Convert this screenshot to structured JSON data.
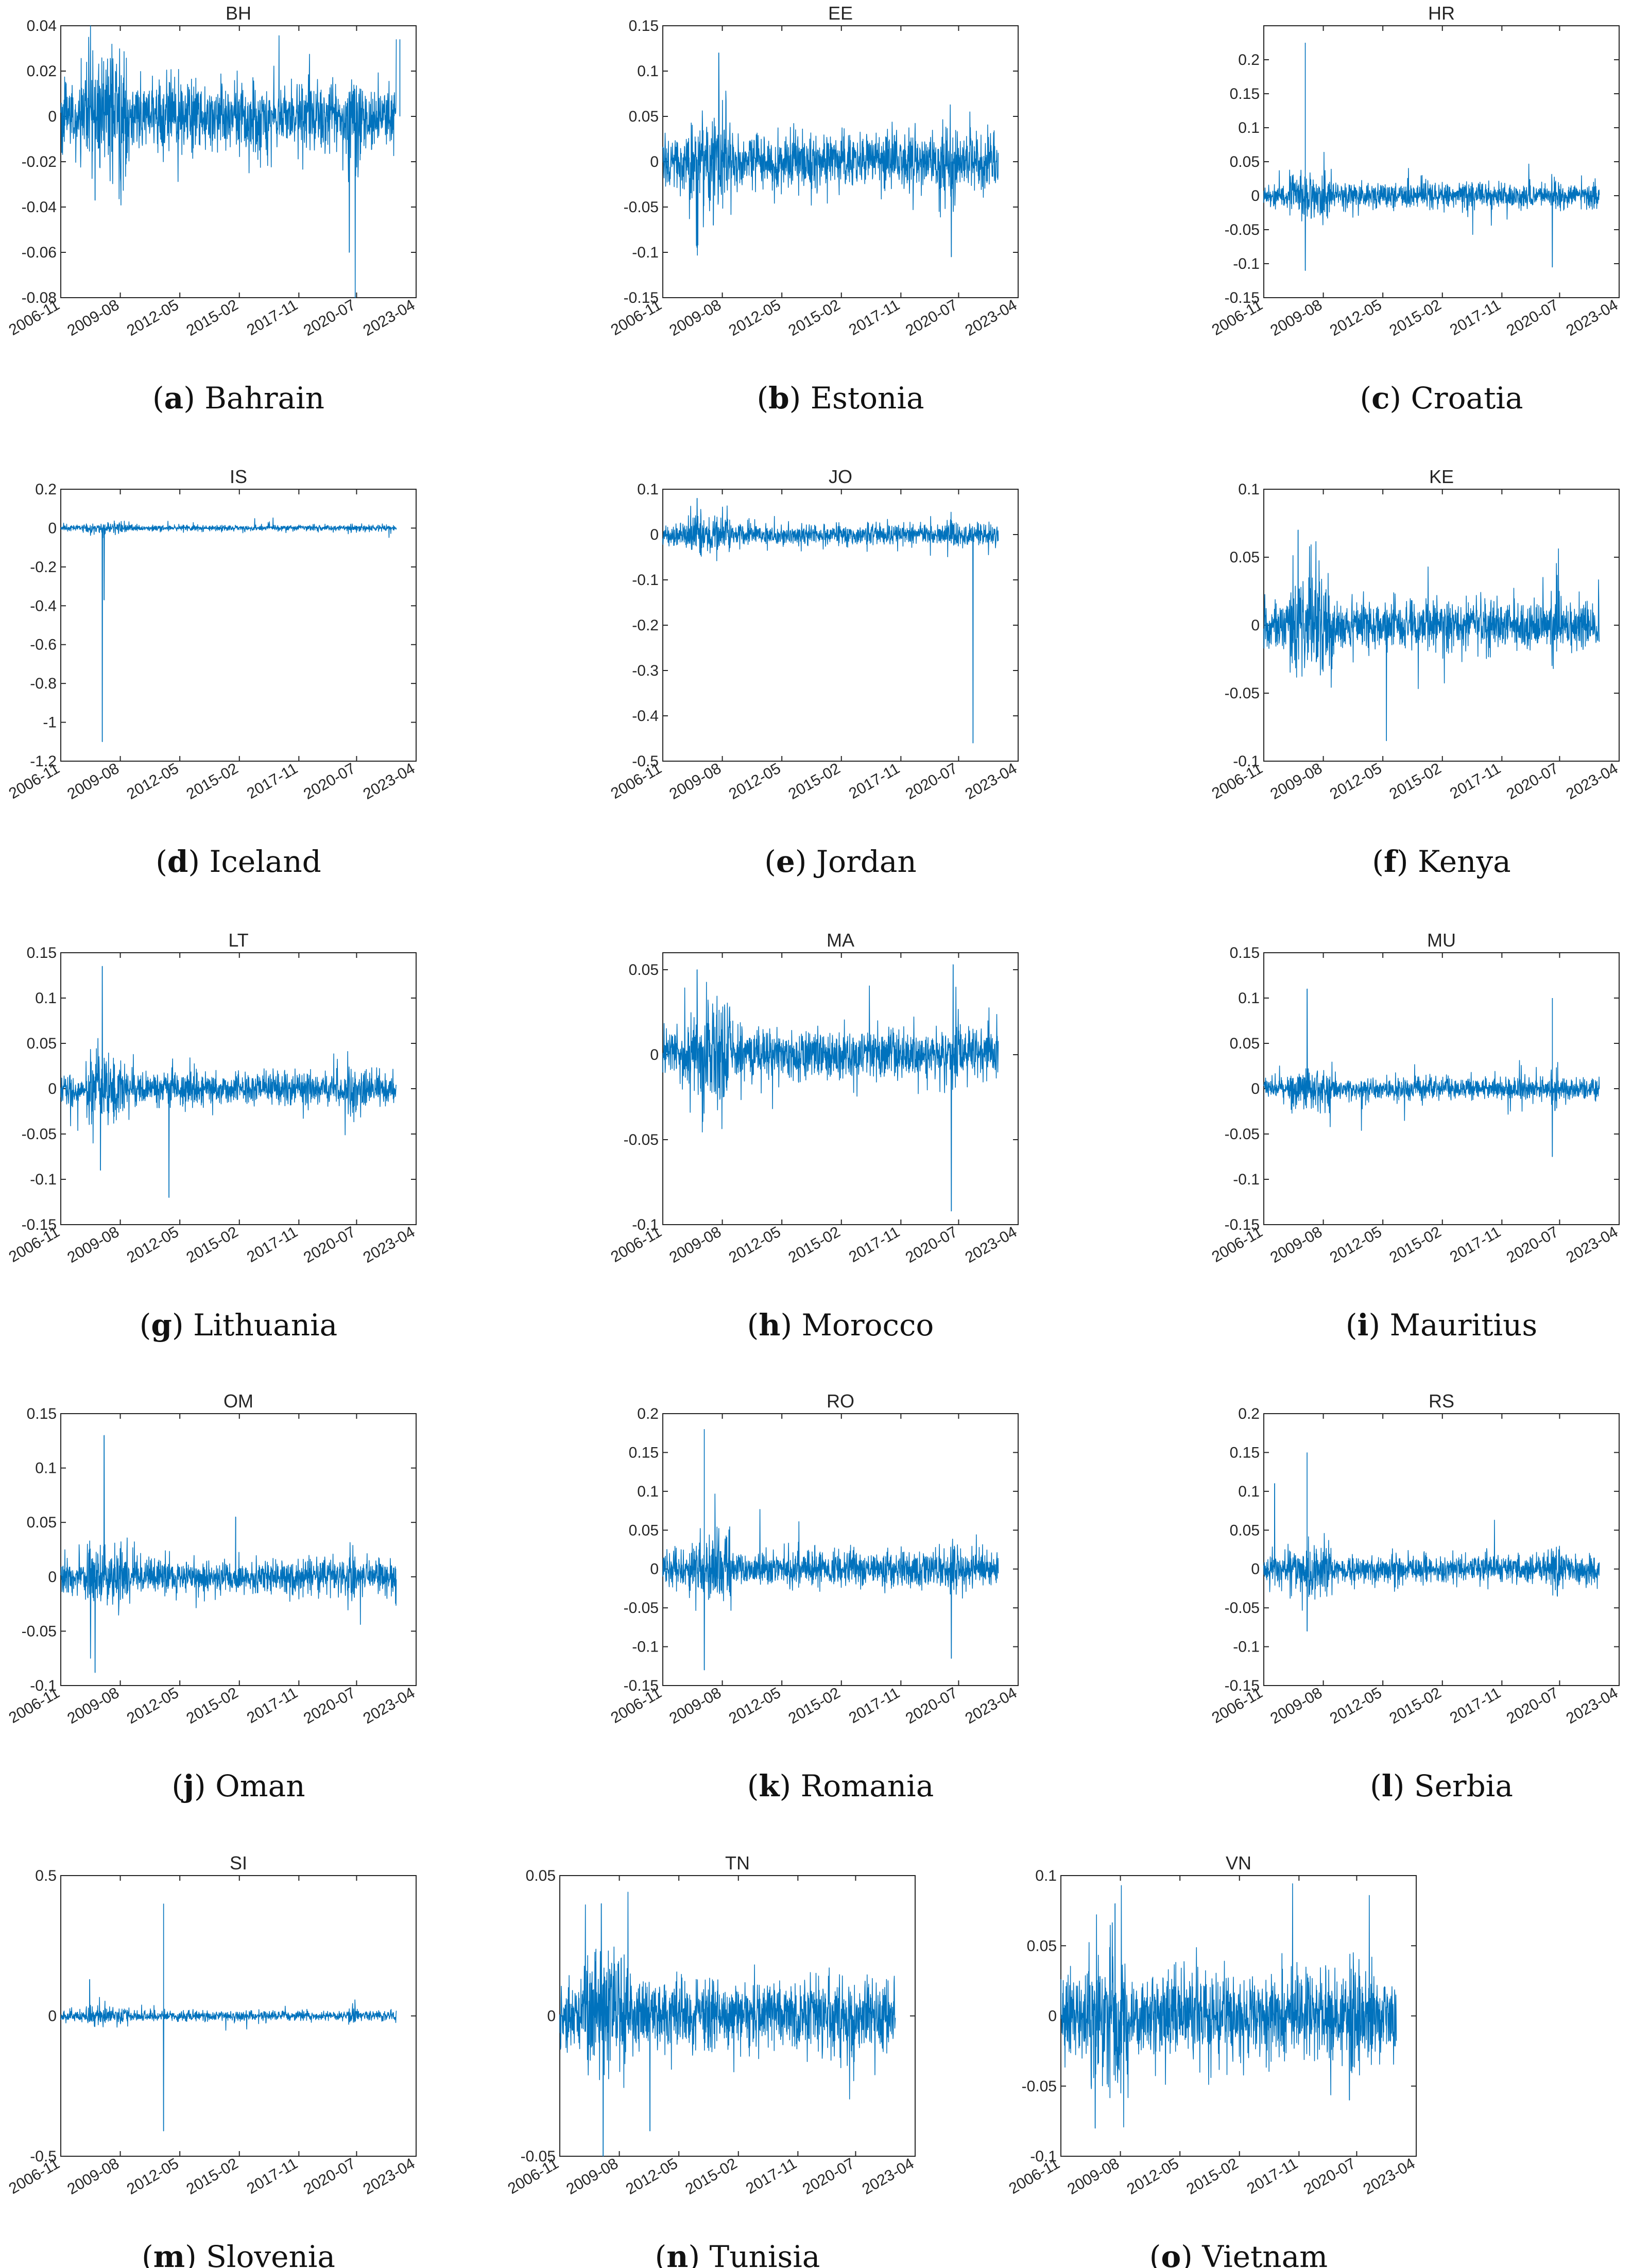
{
  "figure": {
    "series_color": "#0072BD",
    "time_ticks": [
      "2006-11",
      "2009-08",
      "2012-05",
      "2015-02",
      "2017-11",
      "2020-07",
      "2023-04"
    ]
  },
  "chart_data": [
    {
      "type": "line",
      "title": "BH",
      "caption_letter": "a",
      "caption_country": "Bahrain",
      "ylim": [
        -0.08,
        0.04
      ],
      "yticks": [
        -0.08,
        -0.06,
        -0.04,
        -0.02,
        0,
        0.02,
        0.04
      ],
      "ytick_labels": [
        "-0.08",
        "-0.06",
        "-0.04",
        "-0.02",
        "0",
        "0.02",
        "0.04"
      ],
      "xlabel": "",
      "ylabel": "",
      "grid": false,
      "legend": "none",
      "typical_amplitude": 0.01,
      "annotated_extremes": [
        {
          "date": "2008-06",
          "value": -0.037
        },
        {
          "date": "2020-03",
          "value": -0.06
        },
        {
          "date": "2022-07",
          "value": 0.034
        }
      ]
    },
    {
      "type": "line",
      "title": "EE",
      "caption_letter": "b",
      "caption_country": "Estonia",
      "ylim": [
        -0.15,
        0.15
      ],
      "yticks": [
        -0.15,
        -0.1,
        -0.05,
        0,
        0.05,
        0.1,
        0.15
      ],
      "ytick_labels": [
        "-0.15",
        "-0.1",
        "-0.05",
        "0",
        "0.05",
        "0.1",
        "0.15"
      ],
      "xlabel": "",
      "ylabel": "",
      "grid": false,
      "legend": "none",
      "typical_amplitude": 0.02,
      "annotated_extremes": [
        {
          "date": "2009-06",
          "value": 0.12
        },
        {
          "date": "2009-03",
          "value": -0.07
        },
        {
          "date": "2020-03",
          "value": -0.105
        }
      ]
    },
    {
      "type": "line",
      "title": "HR",
      "caption_letter": "c",
      "caption_country": "Croatia",
      "ylim": [
        -0.15,
        0.25
      ],
      "yticks": [
        -0.15,
        -0.1,
        -0.05,
        0,
        0.05,
        0.1,
        0.15,
        0.2
      ],
      "ytick_labels": [
        "-0.15",
        "-0.1",
        "-0.05",
        "0",
        "0.05",
        "0.1",
        "0.15",
        "0.2"
      ],
      "xlabel": "",
      "ylabel": "",
      "grid": false,
      "legend": "none",
      "typical_amplitude": 0.012,
      "annotated_extremes": [
        {
          "date": "2008-10",
          "value": 0.225
        },
        {
          "date": "2008-10",
          "value": -0.11
        },
        {
          "date": "2020-03",
          "value": -0.105
        }
      ]
    },
    {
      "type": "line",
      "title": "IS",
      "caption_letter": "d",
      "caption_country": "Iceland",
      "ylim": [
        -1.2,
        0.2
      ],
      "yticks": [
        -1.2,
        -1,
        -0.8,
        -0.6,
        -0.4,
        -0.2,
        0,
        0.2
      ],
      "ytick_labels": [
        "-1.2",
        "-1",
        "-0.8",
        "-0.6",
        "-0.4",
        "-0.2",
        "0",
        "0.2"
      ],
      "xlabel": "",
      "ylabel": "",
      "grid": false,
      "legend": "none",
      "typical_amplitude": 0.01,
      "annotated_extremes": [
        {
          "date": "2008-10",
          "value": -1.1
        },
        {
          "date": "2008-11",
          "value": -0.37
        }
      ]
    },
    {
      "type": "line",
      "title": "JO",
      "caption_letter": "e",
      "caption_country": "Jordan",
      "ylim": [
        -0.5,
        0.1
      ],
      "yticks": [
        -0.5,
        -0.4,
        -0.3,
        -0.2,
        -0.1,
        0,
        0.1
      ],
      "ytick_labels": [
        "-0.5",
        "-0.4",
        "-0.3",
        "-0.2",
        "-0.1",
        "0",
        "0.1"
      ],
      "xlabel": "",
      "ylabel": "",
      "grid": false,
      "legend": "none",
      "typical_amplitude": 0.015,
      "annotated_extremes": [
        {
          "date": "2021-03",
          "value": -0.46
        },
        {
          "date": "2008-06",
          "value": 0.08
        }
      ]
    },
    {
      "type": "line",
      "title": "KE",
      "caption_letter": "f",
      "caption_country": "Kenya",
      "ylim": [
        -0.1,
        0.1
      ],
      "yticks": [
        -0.1,
        -0.05,
        0,
        0.05,
        0.1
      ],
      "ytick_labels": [
        "-0.1",
        "-0.05",
        "0",
        "0.05",
        "0.1"
      ],
      "xlabel": "",
      "ylabel": "",
      "grid": false,
      "legend": "none",
      "typical_amplitude": 0.012,
      "annotated_extremes": [
        {
          "date": "2008-06",
          "value": 0.07
        },
        {
          "date": "2012-07",
          "value": -0.085
        }
      ]
    },
    {
      "type": "line",
      "title": "LT",
      "caption_letter": "g",
      "caption_country": "Lithuania",
      "ylim": [
        -0.15,
        0.15
      ],
      "yticks": [
        -0.15,
        -0.1,
        -0.05,
        0,
        0.05,
        0.1,
        0.15
      ],
      "ytick_labels": [
        "-0.15",
        "-0.1",
        "-0.05",
        "0",
        "0.05",
        "0.1",
        "0.15"
      ],
      "xlabel": "",
      "ylabel": "",
      "grid": false,
      "legend": "none",
      "typical_amplitude": 0.012,
      "annotated_extremes": [
        {
          "date": "2008-10",
          "value": 0.135
        },
        {
          "date": "2008-09",
          "value": -0.09
        },
        {
          "date": "2011-11",
          "value": -0.12
        }
      ]
    },
    {
      "type": "line",
      "title": "MA",
      "caption_letter": "h",
      "caption_country": "Morocco",
      "ylim": [
        -0.1,
        0.06
      ],
      "yticks": [
        -0.1,
        -0.05,
        0,
        0.05
      ],
      "ytick_labels": [
        "-0.1",
        "-0.05",
        "0",
        "0.05"
      ],
      "xlabel": "",
      "ylabel": "",
      "grid": false,
      "legend": "none",
      "typical_amplitude": 0.01,
      "annotated_extremes": [
        {
          "date": "2008-06",
          "value": 0.05
        },
        {
          "date": "2020-03",
          "value": -0.092
        },
        {
          "date": "2020-04",
          "value": 0.053
        }
      ]
    },
    {
      "type": "line",
      "title": "MU",
      "caption_letter": "i",
      "caption_country": "Mauritius",
      "ylim": [
        -0.15,
        0.15
      ],
      "yticks": [
        -0.15,
        -0.1,
        -0.05,
        0,
        0.05,
        0.1,
        0.15
      ],
      "ytick_labels": [
        "-0.15",
        "-0.1",
        "-0.05",
        "0",
        "0.05",
        "0.1",
        "0.15"
      ],
      "xlabel": "",
      "ylabel": "",
      "grid": false,
      "legend": "none",
      "typical_amplitude": 0.008,
      "annotated_extremes": [
        {
          "date": "2008-11",
          "value": 0.11
        },
        {
          "date": "2020-03",
          "value": 0.1
        },
        {
          "date": "2020-03",
          "value": -0.075
        }
      ]
    },
    {
      "type": "line",
      "title": "OM",
      "caption_letter": "j",
      "caption_country": "Oman",
      "ylim": [
        -0.1,
        0.15
      ],
      "yticks": [
        -0.1,
        -0.05,
        0,
        0.05,
        0.1,
        0.15
      ],
      "ytick_labels": [
        "-0.1",
        "-0.05",
        "0",
        "0.05",
        "0.1",
        "0.15"
      ],
      "xlabel": "",
      "ylabel": "",
      "grid": false,
      "legend": "none",
      "typical_amplitude": 0.01,
      "annotated_extremes": [
        {
          "date": "2008-11",
          "value": 0.13
        },
        {
          "date": "2008-06",
          "value": -0.088
        },
        {
          "date": "2014-12",
          "value": 0.055
        }
      ]
    },
    {
      "type": "line",
      "title": "RO",
      "caption_letter": "k",
      "caption_country": "Romania",
      "ylim": [
        -0.15,
        0.2
      ],
      "yticks": [
        -0.15,
        -0.1,
        -0.05,
        0,
        0.05,
        0.1,
        0.15,
        0.2
      ],
      "ytick_labels": [
        "-0.15",
        "-0.1",
        "-0.05",
        "0",
        "0.05",
        "0.1",
        "0.15",
        "0.2"
      ],
      "xlabel": "",
      "ylabel": "",
      "grid": false,
      "legend": "none",
      "typical_amplitude": 0.015,
      "annotated_extremes": [
        {
          "date": "2008-10",
          "value": 0.18
        },
        {
          "date": "2008-10",
          "value": -0.13
        },
        {
          "date": "2020-03",
          "value": -0.115
        }
      ]
    },
    {
      "type": "line",
      "title": "RS",
      "caption_letter": "l",
      "caption_country": "Serbia",
      "ylim": [
        -0.15,
        0.2
      ],
      "yticks": [
        -0.15,
        -0.1,
        -0.05,
        0,
        0.05,
        0.1,
        0.15,
        0.2
      ],
      "ytick_labels": [
        "-0.15",
        "-0.1",
        "-0.05",
        "0",
        "0.05",
        "0.1",
        "0.15",
        "0.2"
      ],
      "xlabel": "",
      "ylabel": "",
      "grid": false,
      "legend": "none",
      "typical_amplitude": 0.012,
      "annotated_extremes": [
        {
          "date": "2008-11",
          "value": 0.15
        },
        {
          "date": "2007-05",
          "value": 0.11
        },
        {
          "date": "2008-11",
          "value": -0.08
        }
      ]
    },
    {
      "type": "line",
      "title": "SI",
      "caption_letter": "m",
      "caption_country": "Slovenia",
      "ylim": [
        -0.5,
        0.5
      ],
      "yticks": [
        -0.5,
        0,
        0.5
      ],
      "ytick_labels": [
        "-0.5",
        "0",
        "0.5"
      ],
      "xlabel": "",
      "ylabel": "",
      "grid": false,
      "legend": "none",
      "typical_amplitude": 0.012,
      "annotated_extremes": [
        {
          "date": "2011-08",
          "value": 0.4
        },
        {
          "date": "2011-08",
          "value": -0.41
        },
        {
          "date": "2008-03",
          "value": 0.13
        }
      ]
    },
    {
      "type": "line",
      "title": "TN",
      "caption_letter": "n",
      "caption_country": "Tunisia",
      "ylim": [
        -0.05,
        0.05
      ],
      "yticks": [
        -0.05,
        0,
        0.05
      ],
      "ytick_labels": [
        "-0.05",
        "0",
        "0.05"
      ],
      "xlabel": "",
      "ylabel": "",
      "grid": false,
      "legend": "none",
      "typical_amplitude": 0.008,
      "annotated_extremes": [
        {
          "date": "2008-11",
          "value": -0.05
        },
        {
          "date": "2008-10",
          "value": 0.04
        },
        {
          "date": "2011-01",
          "value": -0.041
        }
      ]
    },
    {
      "type": "line",
      "title": "VN",
      "caption_letter": "o",
      "caption_country": "Vietnam",
      "ylim": [
        -0.1,
        0.1
      ],
      "yticks": [
        -0.1,
        -0.05,
        0,
        0.05,
        0.1
      ],
      "ytick_labels": [
        "-0.1",
        "-0.05",
        "0",
        "0.05",
        "0.1"
      ],
      "xlabel": "",
      "ylabel": "",
      "grid": false,
      "legend": "none",
      "typical_amplitude": 0.02,
      "annotated_extremes": [
        {
          "date": "2008-06",
          "value": -0.08
        },
        {
          "date": "2009-05",
          "value": 0.08
        },
        {
          "date": "2020-03",
          "value": -0.06
        }
      ]
    }
  ]
}
